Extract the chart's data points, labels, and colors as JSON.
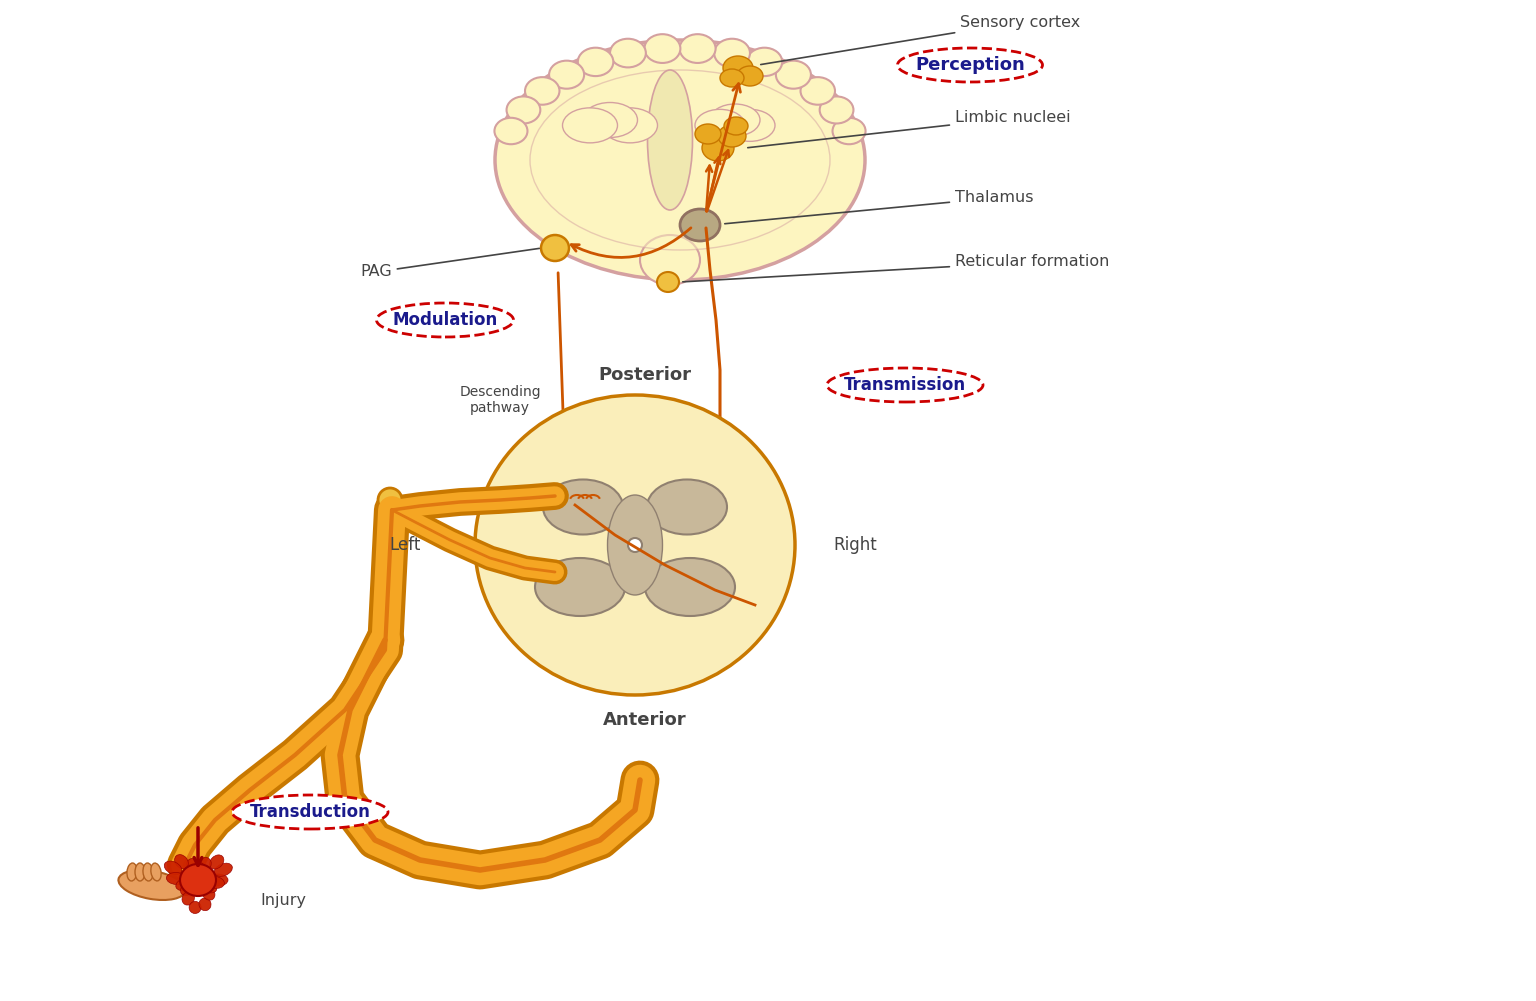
{
  "bg_color": "#ffffff",
  "arrow_color": "#cc5500",
  "brain_fill": "#fdf5c0",
  "brain_outline": "#d4a0a0",
  "spine_fill": "#faeeba",
  "spine_gray": "#c8b89a",
  "nerve_yellow": "#f5a623",
  "nerve_outline": "#c87800",
  "thalamus_color": "#b8a882",
  "pag_color": "#f0c040",
  "cluster_color": "#e8a820",
  "injury_red": "#cc2200",
  "hand_color": "#e8a060",
  "label_color": "#444444",
  "red_label_color": "#cc0000",
  "navy_text": "#1a1a8c",
  "perception_text": "Perception",
  "modulation_text": "Modulation",
  "transmission_text": "Transmission",
  "transduction_text": "Transduction",
  "sensory_cortex_text": "Sensory cortex",
  "limbic_text": "Limbic nucleei",
  "thalamus_text": "Thalamus",
  "reticular_text": "Reticular formation",
  "pag_text": "PAG",
  "descending_text": "Descending\npathway",
  "posterior_text": "Posterior",
  "anterior_text": "Anterior",
  "left_text": "Left",
  "right_text": "Right",
  "injury_text": "Injury"
}
